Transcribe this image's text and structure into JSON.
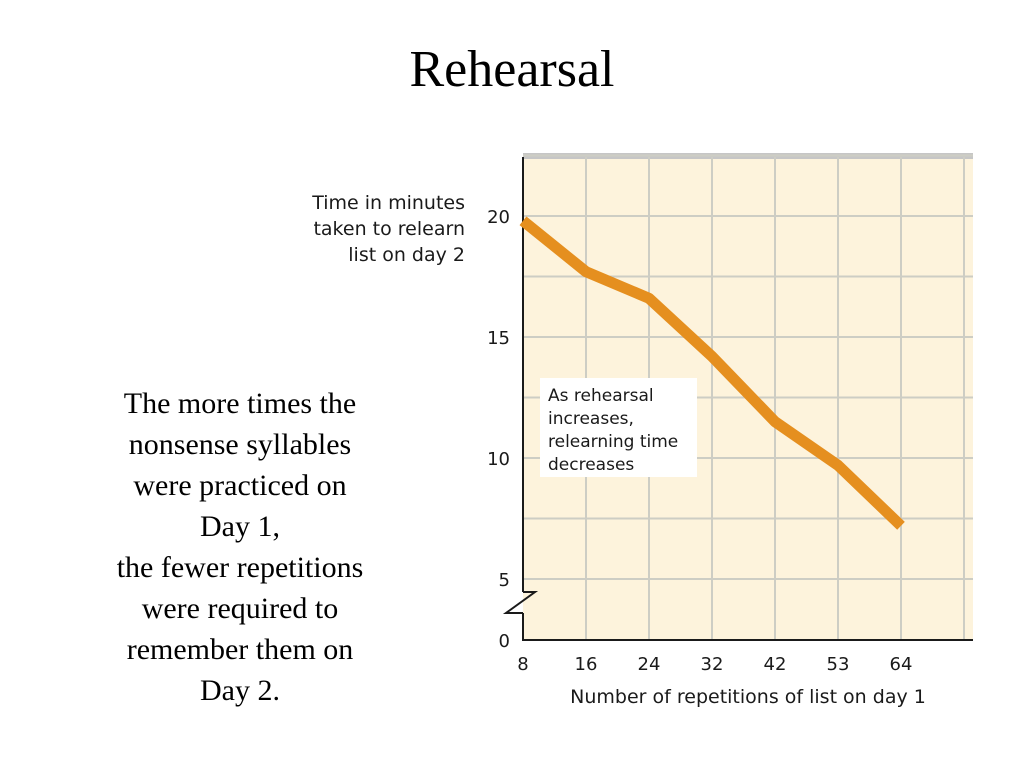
{
  "slide": {
    "title": "Rehearsal",
    "caption_lines": [
      "The more times the",
      "nonsense syllables",
      "were practiced on",
      "Day 1,",
      "the fewer repetitions",
      "were required to",
      "remember them on",
      "Day 2."
    ]
  },
  "colors": {
    "plot_background": "#fdf3dc",
    "grid": "#cdcdc4",
    "line": "#e58f1f",
    "frame_top": "#c6c6c6"
  },
  "chart_data": {
    "type": "line",
    "title": "",
    "ylabel_lines": [
      "Time in minutes",
      "taken to relearn",
      "list on day 2"
    ],
    "xlabel": "Number of repetitions of list on day 1",
    "x": [
      "8",
      "16",
      "24",
      "32",
      "42",
      "53",
      "64"
    ],
    "series": [
      {
        "values": [
          19.8,
          17.7,
          16.6,
          14.2,
          11.5,
          9.7,
          7.2
        ]
      }
    ],
    "yticks": [
      "0",
      "5",
      "10",
      "15",
      "20"
    ],
    "ylim": [
      0,
      23
    ],
    "y_axis_break": true,
    "grid": true,
    "annotation_lines": [
      "As rehearsal",
      "increases,",
      "relearning time",
      "decreases"
    ]
  }
}
